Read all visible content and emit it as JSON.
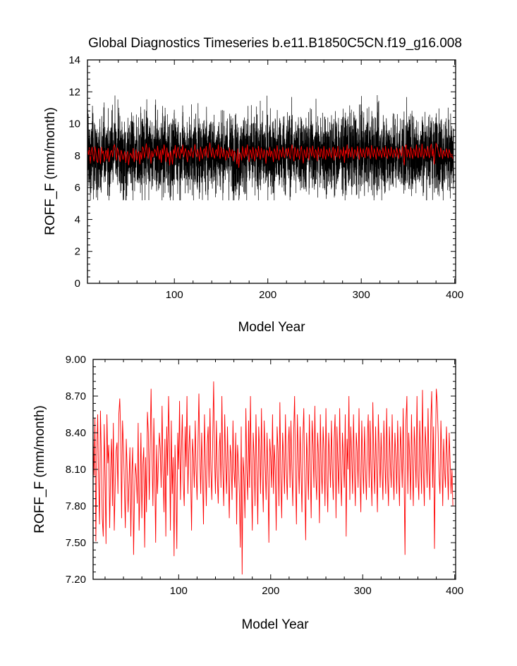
{
  "page": {
    "title": "Global Diagnostics Timeseries b.e11.B1850C5CN.f19_g16.008"
  },
  "colors": {
    "monthly_series": "#000000",
    "annual_series": "#ff0000",
    "frame": "#000000"
  },
  "chart_data": [
    {
      "type": "line",
      "xlabel": "Model Year",
      "ylabel": "ROFF_F (mm/month)",
      "xlim": [
        7,
        401
      ],
      "ylim": [
        0,
        14
      ],
      "x_ticks": [
        100,
        200,
        300,
        400
      ],
      "y_ticks": [
        0,
        2,
        4,
        6,
        8,
        10,
        12,
        14
      ],
      "y_tick_labels": [
        "0",
        "2",
        "4",
        "6",
        "8",
        "10",
        "12",
        "14"
      ],
      "series": [
        {
          "color": "black",
          "resolution": "monthly",
          "x_range": [
            7,
            401
          ],
          "mean": 8.1,
          "min": 5.2,
          "max": 12.2
        },
        {
          "color": "red",
          "resolution": "annual",
          "x_range": [
            7,
            401
          ],
          "mean": 8.1,
          "min": 7.25,
          "max": 8.8
        }
      ]
    },
    {
      "type": "line",
      "xlabel": "Model Year",
      "ylabel": "ROFF_F (mm/month)",
      "xlim": [
        7,
        401
      ],
      "ylim": [
        7.2,
        9.0
      ],
      "x_ticks": [
        100,
        200,
        300,
        400
      ],
      "y_ticks": [
        7.2,
        7.5,
        7.8,
        8.1,
        8.4,
        8.7,
        9.0
      ],
      "y_tick_labels": [
        "7.20",
        "7.50",
        "7.80",
        "8.10",
        "8.40",
        "8.70",
        "9.00"
      ],
      "series": [
        {
          "color": "red",
          "resolution": "annual",
          "x_start": 7,
          "values": [
            8.37,
            8.05,
            8.52,
            7.51,
            8.25,
            8.55,
            8.0,
            7.65,
            8.58,
            8.2,
            7.7,
            7.55,
            8.47,
            8.05,
            7.49,
            8.55,
            8.15,
            8.3,
            7.62,
            8.1,
            8.35,
            7.8,
            8.48,
            7.6,
            7.95,
            8.25,
            8.32,
            7.9,
            8.55,
            8.68,
            8.4,
            7.7,
            8.5,
            8.28,
            7.95,
            7.62,
            8.35,
            8.1,
            7.75,
            8.0,
            8.28,
            7.55,
            8.05,
            8.28,
            7.4,
            7.9,
            8.15,
            8.05,
            7.82,
            8.48,
            7.6,
            7.95,
            8.4,
            7.7,
            8.12,
            8.28,
            7.46,
            8.2,
            7.75,
            8.57,
            8.4,
            7.85,
            8.28,
            8.76,
            8.2,
            7.8,
            8.52,
            8.1,
            7.5,
            8.3,
            7.9,
            8.15,
            8.4,
            8.27,
            7.95,
            8.62,
            8.1,
            7.75,
            8.35,
            7.55,
            8.45,
            8.05,
            8.7,
            8.3,
            7.6,
            8.5,
            7.9,
            8.2,
            7.39,
            8.3,
            7.95,
            7.45,
            8.4,
            8.1,
            8.66,
            7.85,
            8.25,
            8.55,
            8.0,
            7.8,
            8.45,
            8.12,
            8.7,
            7.9,
            8.25,
            8.46,
            8.05,
            7.6,
            8.35,
            8.2,
            7.95,
            8.5,
            8.1,
            7.85,
            8.3,
            8.72,
            8.2,
            7.9,
            8.4,
            8.05,
            7.65,
            8.55,
            8.15,
            7.8,
            8.3,
            8.45,
            7.95,
            8.6,
            8.1,
            7.85,
            8.35,
            8.82,
            8.2,
            7.9,
            8.5,
            8.05,
            7.82,
            8.25,
            8.4,
            7.95,
            8.7,
            8.1,
            7.8,
            8.55,
            8.15,
            7.9,
            8.45,
            8.05,
            7.7,
            8.3,
            8.2,
            7.85,
            8.5,
            8.1,
            7.95,
            8.4,
            7.65,
            8.3,
            8.15,
            7.9,
            7.46,
            8.45,
            7.24,
            8.2,
            8.05,
            7.7,
            8.6,
            8.1,
            7.85,
            8.5,
            7.95,
            8.7,
            8.05,
            7.6,
            8.4,
            8.2,
            7.8,
            8.55,
            8.1,
            7.65,
            8.45,
            8.25,
            7.9,
            8.6,
            8.05,
            7.75,
            8.5,
            8.15,
            7.85,
            8.4,
            8.05,
            7.5,
            8.35,
            8.2,
            7.95,
            8.55,
            7.9,
            8.3,
            8.1,
            7.6,
            8.45,
            8.25,
            7.8,
            8.65,
            8.05,
            7.7,
            8.4,
            8.2,
            7.9,
            8.55,
            8.1,
            7.85,
            8.3,
            8.45,
            7.95,
            8.5,
            8.1,
            7.8,
            8.4,
            8.7,
            8.05,
            7.65,
            8.55,
            8.2,
            7.9,
            8.45,
            8.1,
            7.75,
            8.35,
            8.6,
            8.0,
            7.52,
            8.4,
            8.15,
            7.85,
            8.55,
            8.1,
            7.7,
            8.5,
            8.3,
            7.95,
            8.62,
            8.05,
            7.85,
            8.4,
            8.2,
            7.66,
            8.55,
            8.1,
            7.9,
            8.45,
            8.25,
            7.8,
            8.6,
            8.05,
            7.75,
            8.4,
            8.2,
            7.95,
            8.5,
            8.1,
            7.85,
            8.35,
            8.55,
            7.7,
            8.45,
            8.15,
            7.9,
            8.6,
            8.05,
            7.8,
            8.4,
            8.2,
            7.95,
            8.55,
            7.55,
            8.35,
            8.1,
            8.7,
            7.85,
            8.45,
            8.2,
            7.9,
            8.55,
            8.1,
            7.8,
            8.4,
            8.25,
            7.95,
            8.6,
            8.05,
            7.75,
            8.5,
            8.15,
            7.9,
            8.45,
            8.1,
            7.85,
            8.35,
            8.55,
            7.95,
            8.5,
            8.1,
            7.8,
            8.65,
            8.2,
            7.9,
            8.45,
            8.1,
            7.75,
            8.55,
            8.25,
            7.95,
            8.4,
            8.1,
            7.85,
            8.5,
            8.2,
            7.9,
            8.6,
            8.05,
            7.8,
            8.45,
            8.15,
            7.95,
            8.55,
            8.1,
            7.85,
            8.4,
            8.2,
            7.9,
            8.5,
            8.1,
            7.8,
            8.45,
            8.25,
            7.95,
            8.6,
            8.05,
            7.4,
            8.5,
            8.7,
            7.9,
            8.4,
            8.2,
            7.85,
            8.55,
            8.1,
            7.8,
            8.45,
            8.25,
            7.95,
            8.7,
            8.05,
            7.85,
            8.5,
            8.2,
            7.9,
            8.75,
            8.1,
            7.8,
            8.45,
            8.25,
            7.95,
            8.6,
            8.1,
            7.85,
            8.5,
            8.74,
            7.95,
            8.45,
            7.45,
            8.2,
            8.76,
            8.65,
            8.4,
            8.05,
            7.9,
            8.5,
            8.2,
            7.8,
            8.35,
            8.1,
            7.95,
            8.45,
            8.15,
            7.85,
            8.4,
            8.16,
            7.9,
            8.1,
            7.8
          ]
        }
      ]
    }
  ]
}
